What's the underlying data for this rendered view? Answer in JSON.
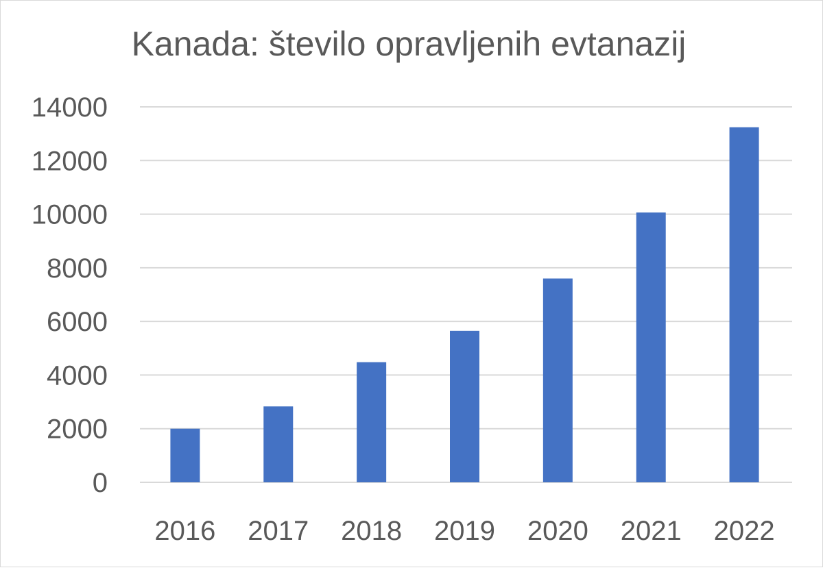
{
  "chart_data": {
    "type": "bar",
    "title": "Kanada: število opravljenih evtanazij",
    "categories": [
      "2016",
      "2017",
      "2018",
      "2019",
      "2020",
      "2021",
      "2022"
    ],
    "values": [
      2000,
      2830,
      4480,
      5650,
      7600,
      10060,
      13240
    ],
    "xlabel": "",
    "ylabel": "",
    "ylim": [
      0,
      14000
    ],
    "yticks": [
      "0",
      "2000",
      "4000",
      "6000",
      "8000",
      "10000",
      "12000",
      "14000"
    ],
    "grid": true,
    "legend": "none",
    "bar_color": "#4472C4",
    "grid_color": "#d9d9d9",
    "text_color": "#595959"
  }
}
